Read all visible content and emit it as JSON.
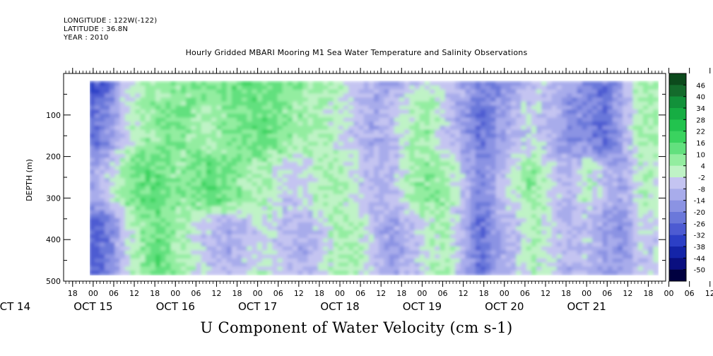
{
  "header": {
    "longitude": "LONGITUDE : 122W(-122)",
    "latitude": "LATITUDE : 36.8N",
    "year": "YEAR : 2010"
  },
  "chart_data": {
    "type": "heatmap",
    "title": "Hourly Gridded MBARI Mooring M1 Sea Water Temperature and Salinity Observations",
    "subtitle": "U Component of Water Velocity (cm s-1)",
    "xlabel": "",
    "ylabel": "DEPTH (m)",
    "x_tick_hours": [
      "18",
      "00",
      "06",
      "12",
      "18",
      "00",
      "06",
      "12",
      "18",
      "00",
      "06",
      "12",
      "18",
      "00",
      "06",
      "12",
      "18",
      "00",
      "06",
      "12",
      "18",
      "00",
      "06",
      "12",
      "18",
      "00",
      "06",
      "12",
      "18",
      "00",
      "06",
      "12"
    ],
    "date_labels": [
      "OCT 14",
      "OCT 15",
      "OCT 16",
      "OCT 17",
      "OCT 18",
      "OCT 19",
      "OCT 20",
      "OCT 21"
    ],
    "y_ticks": [
      100,
      200,
      300,
      400,
      500
    ],
    "y_tick_labels": [
      "100",
      "200",
      "300",
      "400",
      "500"
    ],
    "ylim": [
      500,
      0
    ],
    "data_depth_range": [
      20,
      485
    ],
    "data_time_range": [
      "2010-10-14T23:00",
      "2010-10-21T21:00"
    ],
    "colorbar": {
      "levels": [
        "46",
        "40",
        "34",
        "28",
        "22",
        "16",
        "10",
        "4",
        "-2",
        "-8",
        "-14",
        "-20",
        "-26",
        "-32",
        "-38",
        "-44",
        "-50"
      ],
      "colors": [
        "#0c4a1c",
        "#146b2c",
        "#12913a",
        "#16ad43",
        "#22c34e",
        "#3ad35f",
        "#62e07e",
        "#93eda0",
        "#bff3c6",
        "#c4c4f1",
        "#a8aceb",
        "#8b93e3",
        "#6b78da",
        "#4d5bd2",
        "#2c3fc6",
        "#1424a8",
        "#0a0f80",
        "#000040"
      ]
    },
    "depth_bands": [
      {
        "name": "surface",
        "depth_range": [
          20,
          45
        ],
        "values_by_hour_block": [
          -34,
          -30,
          -4,
          2,
          4,
          6,
          10,
          12,
          14,
          16,
          12,
          10,
          8,
          6,
          4,
          -6,
          -10,
          -14,
          -8,
          -2,
          -4,
          -10,
          -18,
          -20,
          -14,
          -8,
          -6,
          -12,
          -20,
          -26,
          -14,
          6
        ]
      },
      {
        "name": "upper",
        "depth_range": [
          45,
          200
        ],
        "values_by_hour_block": [
          -26,
          -18,
          -4,
          4,
          8,
          10,
          6,
          4,
          10,
          12,
          14,
          10,
          6,
          4,
          -2,
          -8,
          -12,
          -6,
          2,
          6,
          -6,
          -14,
          -26,
          -14,
          -8,
          -4,
          -10,
          -18,
          -22,
          -26,
          -10,
          4
        ]
      },
      {
        "name": "middle",
        "depth_range": [
          200,
          330
        ],
        "values_by_hour_block": [
          -12,
          -2,
          10,
          16,
          14,
          6,
          12,
          16,
          10,
          4,
          2,
          -6,
          -4,
          2,
          6,
          -2,
          -10,
          -6,
          4,
          10,
          8,
          -4,
          -20,
          -8,
          4,
          10,
          -2,
          -10,
          6,
          -4,
          -12,
          2
        ]
      },
      {
        "name": "lower",
        "depth_range": [
          330,
          485
        ],
        "values_by_hour_block": [
          -30,
          -24,
          -6,
          6,
          14,
          4,
          -4,
          -12,
          -16,
          -8,
          -2,
          -10,
          -14,
          -6,
          4,
          6,
          -6,
          -16,
          -10,
          -2,
          6,
          -8,
          -26,
          -12,
          -6,
          4,
          -2,
          -8,
          -4,
          -12,
          -18,
          -6
        ]
      }
    ]
  }
}
